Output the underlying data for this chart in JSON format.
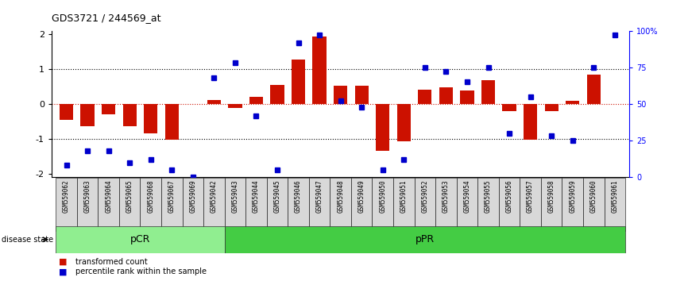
{
  "title": "GDS3721 / 244569_at",
  "samples": [
    "GSM559062",
    "GSM559063",
    "GSM559064",
    "GSM559065",
    "GSM559068",
    "GSM559067",
    "GSM559069",
    "GSM559042",
    "GSM559043",
    "GSM559044",
    "GSM559045",
    "GSM559046",
    "GSM559047",
    "GSM559048",
    "GSM559049",
    "GSM559050",
    "GSM559051",
    "GSM559052",
    "GSM559053",
    "GSM559054",
    "GSM559055",
    "GSM559056",
    "GSM559057",
    "GSM559058",
    "GSM559059",
    "GSM559060",
    "GSM559061"
  ],
  "bar_values": [
    -0.45,
    -0.65,
    -0.3,
    -0.65,
    -0.85,
    -1.03,
    0.0,
    0.12,
    -0.12,
    0.2,
    0.55,
    1.28,
    1.95,
    0.52,
    0.52,
    -1.35,
    -1.08,
    0.42,
    0.48,
    0.38,
    0.68,
    -0.2,
    -1.02,
    -0.2,
    0.08,
    0.85,
    0.0
  ],
  "percentile_values": [
    8,
    18,
    18,
    10,
    12,
    5,
    0,
    68,
    78,
    42,
    5,
    92,
    97,
    52,
    48,
    5,
    12,
    75,
    72,
    65,
    75,
    30,
    55,
    28,
    25,
    75,
    97
  ],
  "pCR_count": 8,
  "pPR_count": 19,
  "bar_color": "#CC1100",
  "dot_color": "#0000CC",
  "pcr_color": "#90EE90",
  "ppr_color": "#44CC44",
  "ylim_left": [
    -2.1,
    2.1
  ],
  "ylim_right": [
    0,
    100
  ],
  "yticks_left": [
    -2,
    -1,
    0,
    1,
    2
  ],
  "yticks_right": [
    0,
    25,
    50,
    75,
    100
  ],
  "yticklabels_right": [
    "0",
    "25",
    "50",
    "75",
    "100%"
  ],
  "dotted_lines_black": [
    -1,
    1
  ],
  "dotted_line_red": 0,
  "legend_bar": "transformed count",
  "legend_dot": "percentile rank within the sample",
  "disease_state_label": "disease state",
  "pcr_label": "pCR",
  "ppr_label": "pPR"
}
